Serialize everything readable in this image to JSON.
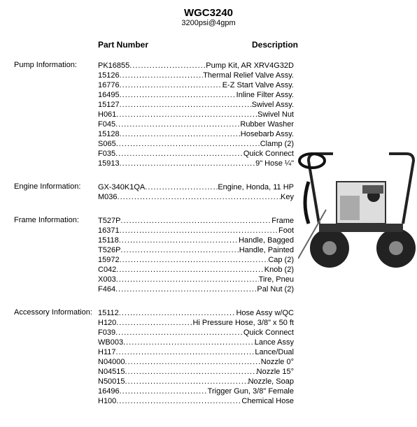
{
  "title": "WGC3240",
  "subtitle": "3200psi@4gpm",
  "headers": {
    "part": "Part Number",
    "desc": "Description"
  },
  "sections": [
    {
      "label": "Pump Information:",
      "rows": [
        {
          "pn": "PK16855",
          "desc": "Pump Kit, AR XRV4G32D"
        },
        {
          "pn": "15126",
          "desc": "Thermal Relief Valve Assy."
        },
        {
          "pn": "16776",
          "desc": "E-Z Start Valve Assy."
        },
        {
          "pn": "16495",
          "desc": "Inline Filter Assy."
        },
        {
          "pn": "15127",
          "desc": "Swivel Assy."
        },
        {
          "pn": "H061",
          "desc": "Swivel Nut"
        },
        {
          "pn": "F045",
          "desc": "Rubber Washer"
        },
        {
          "pn": "15128",
          "desc": "Hosebarb Assy."
        },
        {
          "pn": "S065",
          "desc": "Clamp (2)"
        },
        {
          "pn": "F035",
          "desc": "Quick Connect"
        },
        {
          "pn": "15913",
          "desc": "9\" Hose ¼\""
        }
      ]
    },
    {
      "label": "Engine Information:",
      "rows": [
        {
          "pn": "GX-340K1QA",
          "desc": "Engine, Honda, 11 HP"
        },
        {
          "pn": "M036",
          "desc": "Key"
        }
      ]
    },
    {
      "label": "Frame Information:",
      "rows": [
        {
          "pn": "T527P",
          "desc": "Frame"
        },
        {
          "pn": "16371",
          "desc": "Foot"
        },
        {
          "pn": "15118",
          "desc": "Handle, Bagged"
        },
        {
          "pn": "T526P",
          "desc": "Handle, Painted"
        },
        {
          "pn": "15972",
          "desc": "Cap (2)"
        },
        {
          "pn": "C042",
          "desc": "Knob (2)"
        },
        {
          "pn": "X003",
          "desc": "Tire, Pneu"
        },
        {
          "pn": "F464",
          "desc": "Pal Nut (2)"
        }
      ]
    },
    {
      "label": "Accessory Information:",
      "rows": [
        {
          "pn": "15112",
          "desc": "Hose Assy w/QC"
        },
        {
          "pn": "H120",
          "desc": "Hi Pressure Hose, 3/8\" x 50 ft"
        },
        {
          "pn": "F039",
          "desc": "Quick Connect"
        },
        {
          "pn": "WB003",
          "desc": "Lance Assy"
        },
        {
          "pn": "H117",
          "desc": "Lance/Dual"
        },
        {
          "pn": "N04000",
          "desc": "Nozzle 0°"
        },
        {
          "pn": "N04515",
          "desc": "Nozzle 15°"
        },
        {
          "pn": "N50015",
          "desc": "Nozzle, Soap"
        },
        {
          "pn": "16496",
          "desc": "Trigger Gun, 3/8\" Female"
        },
        {
          "pn": "H100",
          "desc": "Chemical Hose"
        }
      ]
    }
  ]
}
